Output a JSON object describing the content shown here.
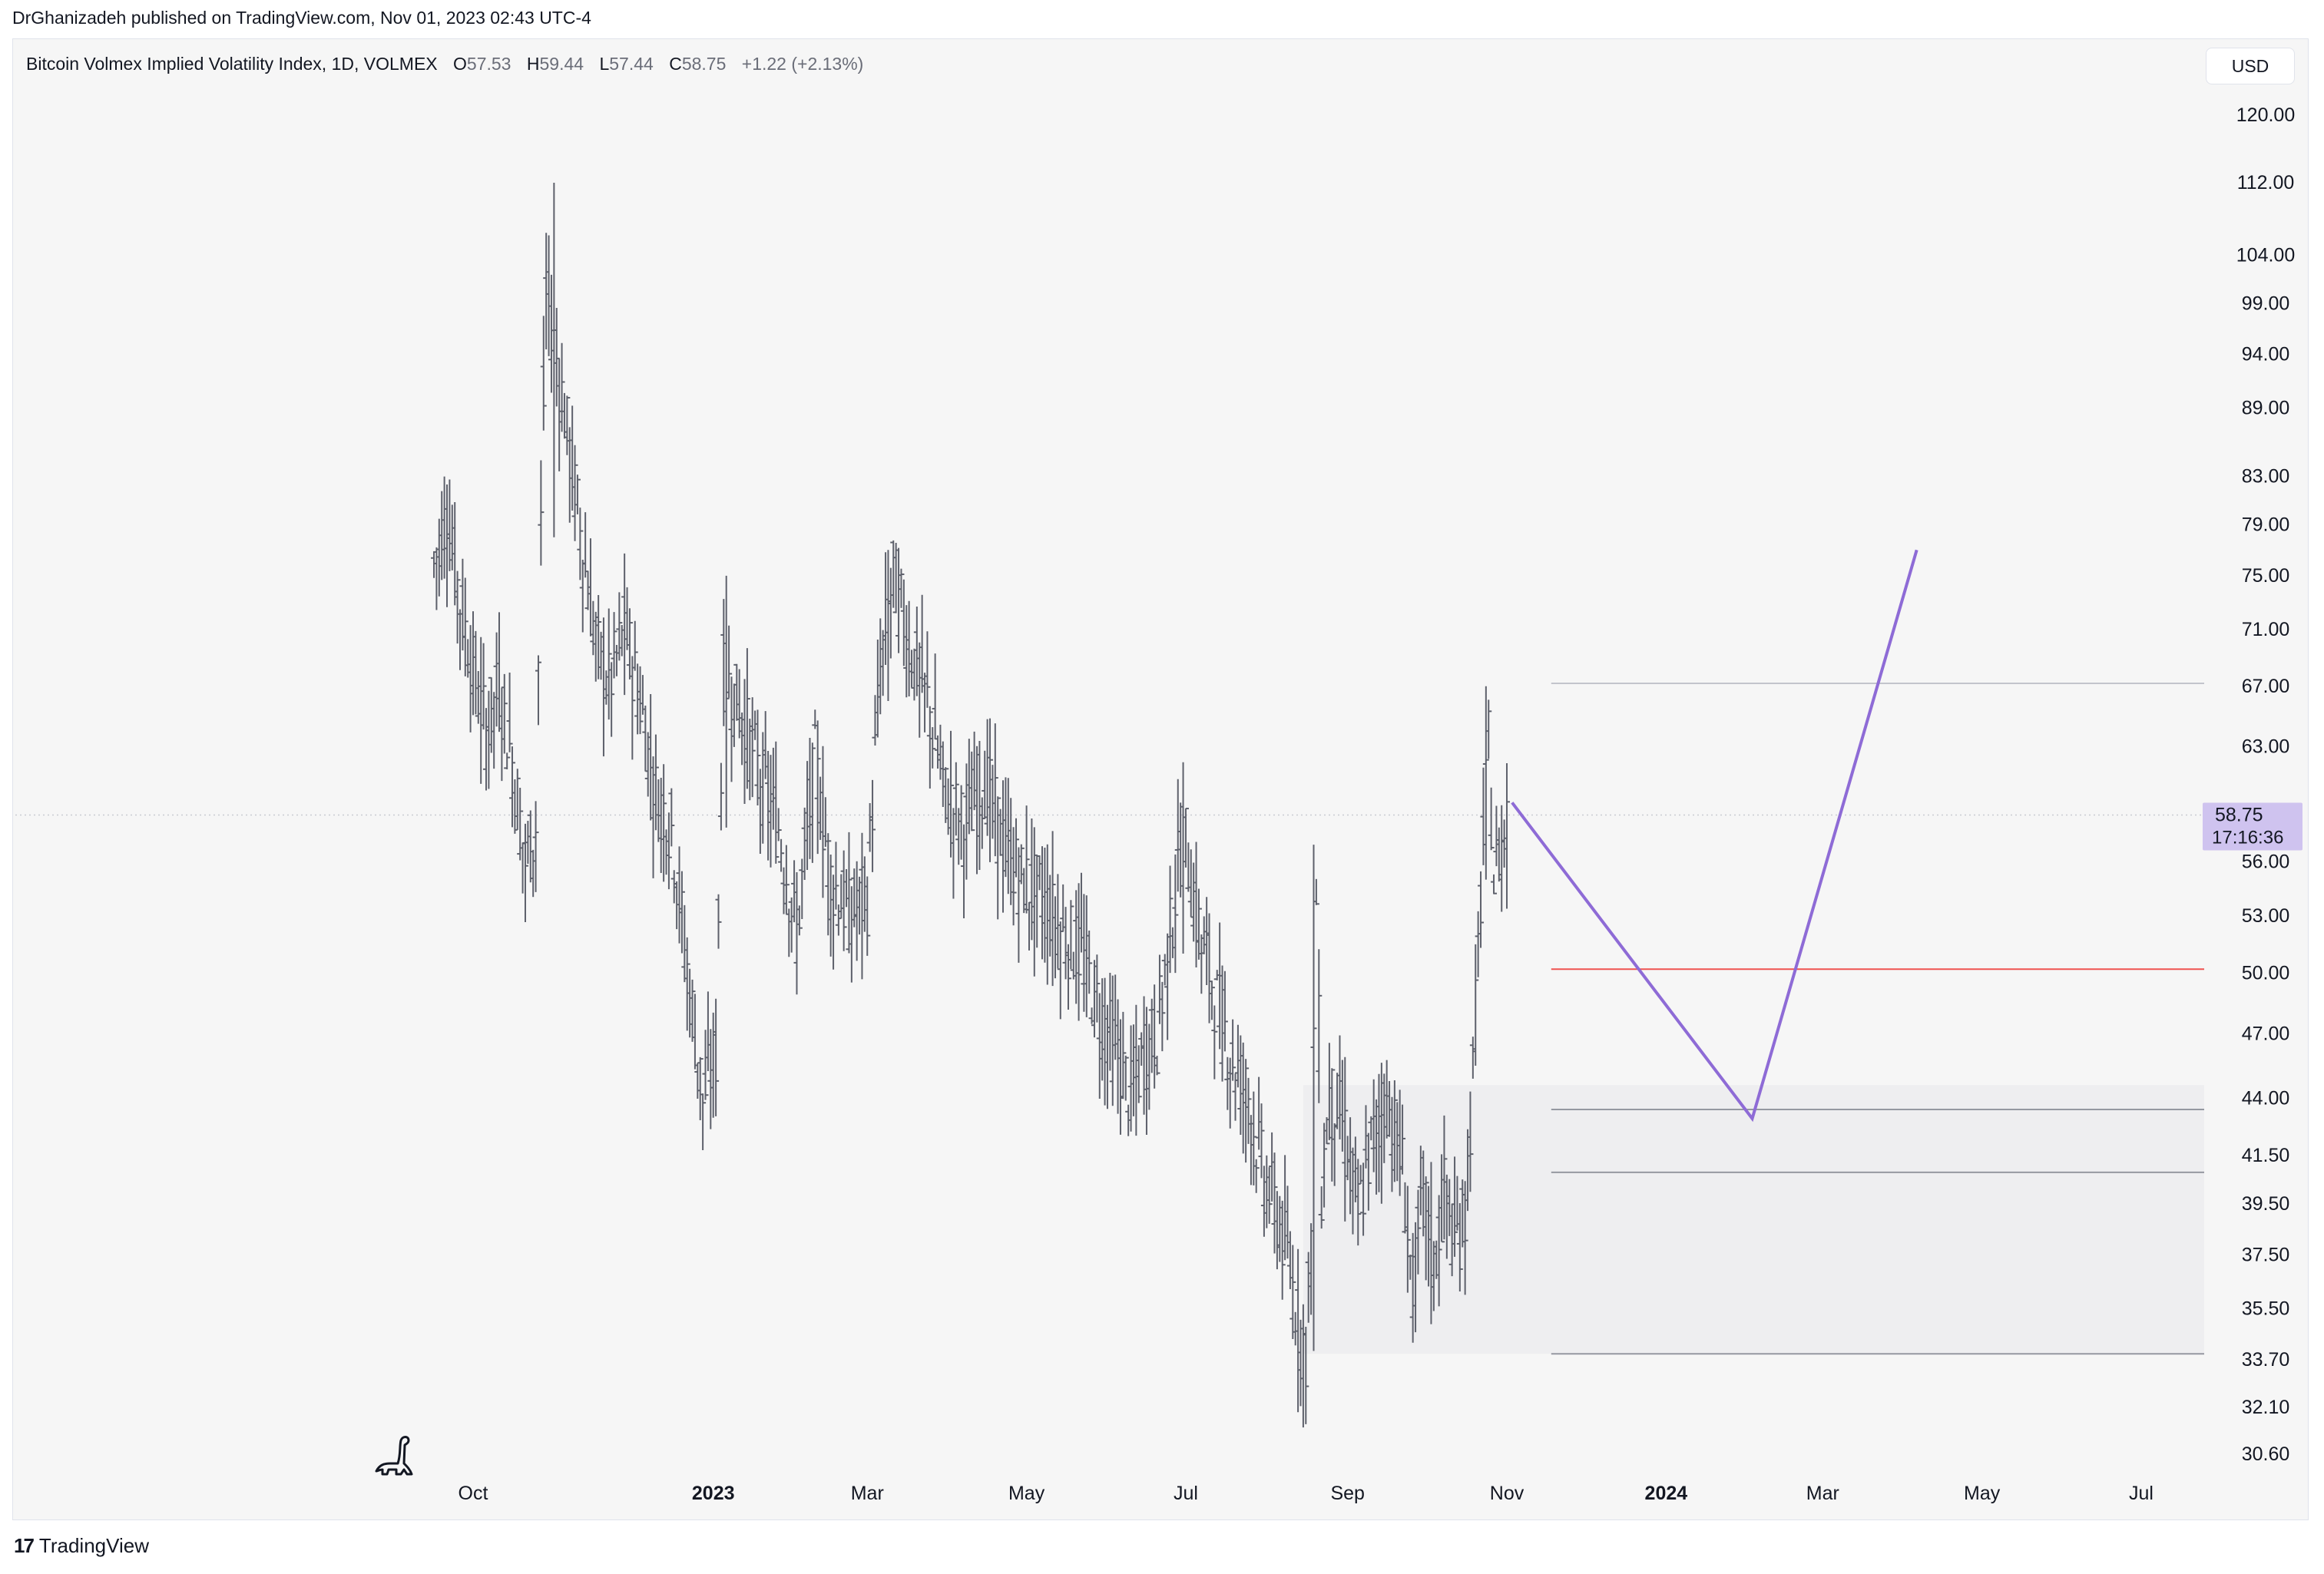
{
  "header": {
    "text": "DrGhanizadeh published on TradingView.com, Nov 01, 2023 02:43 UTC-4"
  },
  "legend": {
    "symbol": "Bitcoin Volmex Implied Volatility Index, 1D, VOLMEX",
    "open_label": "O",
    "open": "57.53",
    "high_label": "H",
    "high": "59.44",
    "low_label": "L",
    "low": "57.44",
    "close_label": "C",
    "close": "58.75",
    "change": "+1.22 (+2.13%)"
  },
  "currency": "USD",
  "price_tag": {
    "price": "58.75",
    "countdown": "17:16:36"
  },
  "footer": {
    "brand": "TradingView",
    "mark": "17"
  },
  "colors": {
    "candle": "#5d606b",
    "projection": "#8e6bd6",
    "tag_bg": "#cfc3ef",
    "support_line": "#ef5350",
    "level_line": "#9598a1",
    "zone": "#eeeef0"
  },
  "chart_data": {
    "type": "line",
    "title": "Bitcoin Volmex Implied Volatility Index, 1D, VOLMEX",
    "y_scale": "log",
    "ylim": [
      29.5,
      126
    ],
    "y_ticks": [
      "120.00",
      "112.00",
      "104.00",
      "99.00",
      "94.00",
      "89.00",
      "83.00",
      "79.00",
      "75.00",
      "71.00",
      "67.00",
      "63.00",
      "56.00",
      "53.00",
      "50.00",
      "47.00",
      "44.00",
      "41.50",
      "39.50",
      "37.50",
      "35.50",
      "33.70",
      "32.10",
      "30.60"
    ],
    "x_ticks": [
      "Oct",
      "2023",
      "Mar",
      "May",
      "Jul",
      "Sep",
      "Nov",
      "2024",
      "Mar",
      "May",
      "Jul"
    ],
    "x_tick_dates": [
      "2022-10-01",
      "2023-01-01",
      "2023-03-01",
      "2023-05-01",
      "2023-07-01",
      "2023-09-01",
      "2023-11-01",
      "2024-01-01",
      "2024-03-01",
      "2024-05-01",
      "2024-07-01"
    ],
    "x_range": [
      "2022-09-01",
      "2024-07-20"
    ],
    "series": [
      {
        "kind": "ohlc-bars",
        "anchors": [
          {
            "date": "2022-09-16",
            "value": 76
          },
          {
            "date": "2022-09-21",
            "value": 80
          },
          {
            "date": "2022-09-26",
            "value": 73
          },
          {
            "date": "2022-10-01",
            "value": 68
          },
          {
            "date": "2022-10-06",
            "value": 64
          },
          {
            "date": "2022-10-11",
            "value": 67
          },
          {
            "date": "2022-10-16",
            "value": 62
          },
          {
            "date": "2022-10-21",
            "value": 56
          },
          {
            "date": "2022-10-25",
            "value": 58
          },
          {
            "date": "2022-10-29",
            "value": 100
          },
          {
            "date": "2022-11-03",
            "value": 92
          },
          {
            "date": "2022-11-07",
            "value": 85
          },
          {
            "date": "2022-11-12",
            "value": 77
          },
          {
            "date": "2022-11-17",
            "value": 70
          },
          {
            "date": "2022-11-22",
            "value": 67
          },
          {
            "date": "2022-11-28",
            "value": 71
          },
          {
            "date": "2022-12-04",
            "value": 66
          },
          {
            "date": "2022-12-10",
            "value": 60
          },
          {
            "date": "2022-12-16",
            "value": 58
          },
          {
            "date": "2022-12-22",
            "value": 50
          },
          {
            "date": "2022-12-28",
            "value": 44
          },
          {
            "date": "2023-01-02",
            "value": 46
          },
          {
            "date": "2023-01-05",
            "value": 68
          },
          {
            "date": "2023-01-12",
            "value": 65
          },
          {
            "date": "2023-01-19",
            "value": 61
          },
          {
            "date": "2023-01-26",
            "value": 58
          },
          {
            "date": "2023-02-02",
            "value": 52
          },
          {
            "date": "2023-02-09",
            "value": 62
          },
          {
            "date": "2023-02-15",
            "value": 55
          },
          {
            "date": "2023-02-22",
            "value": 53
          },
          {
            "date": "2023-03-01",
            "value": 54
          },
          {
            "date": "2023-03-06",
            "value": 68
          },
          {
            "date": "2023-03-11",
            "value": 75
          },
          {
            "date": "2023-03-17",
            "value": 70
          },
          {
            "date": "2023-03-24",
            "value": 66
          },
          {
            "date": "2023-03-31",
            "value": 60
          },
          {
            "date": "2023-04-07",
            "value": 58
          },
          {
            "date": "2023-04-15",
            "value": 61
          },
          {
            "date": "2023-04-22",
            "value": 57
          },
          {
            "date": "2023-04-29",
            "value": 55
          },
          {
            "date": "2023-05-07",
            "value": 54
          },
          {
            "date": "2023-05-15",
            "value": 52
          },
          {
            "date": "2023-05-22",
            "value": 51
          },
          {
            "date": "2023-05-29",
            "value": 48
          },
          {
            "date": "2023-06-05",
            "value": 46
          },
          {
            "date": "2023-06-10",
            "value": 44
          },
          {
            "date": "2023-06-15",
            "value": 46
          },
          {
            "date": "2023-06-20",
            "value": 47
          },
          {
            "date": "2023-06-25",
            "value": 52
          },
          {
            "date": "2023-06-30",
            "value": 58
          },
          {
            "date": "2023-07-05",
            "value": 53
          },
          {
            "date": "2023-07-12",
            "value": 49
          },
          {
            "date": "2023-07-18",
            "value": 46
          },
          {
            "date": "2023-07-25",
            "value": 44
          },
          {
            "date": "2023-07-30",
            "value": 41
          },
          {
            "date": "2023-08-05",
            "value": 39
          },
          {
            "date": "2023-08-10",
            "value": 37
          },
          {
            "date": "2023-08-13",
            "value": 35
          },
          {
            "date": "2023-08-16",
            "value": 34
          },
          {
            "date": "2023-08-18",
            "value": 38
          },
          {
            "date": "2023-08-20",
            "value": 54
          },
          {
            "date": "2023-08-22",
            "value": 40
          },
          {
            "date": "2023-08-25",
            "value": 44
          },
          {
            "date": "2023-08-30",
            "value": 43
          },
          {
            "date": "2023-09-05",
            "value": 39
          },
          {
            "date": "2023-09-10",
            "value": 42
          },
          {
            "date": "2023-09-16",
            "value": 44
          },
          {
            "date": "2023-09-22",
            "value": 41
          },
          {
            "date": "2023-09-26",
            "value": 36
          },
          {
            "date": "2023-09-30",
            "value": 40
          },
          {
            "date": "2023-10-04",
            "value": 37
          },
          {
            "date": "2023-10-08",
            "value": 40
          },
          {
            "date": "2023-10-12",
            "value": 38
          },
          {
            "date": "2023-10-16",
            "value": 39
          },
          {
            "date": "2023-10-19",
            "value": 45
          },
          {
            "date": "2023-10-23",
            "value": 57
          },
          {
            "date": "2023-10-25",
            "value": 63
          },
          {
            "date": "2023-10-27",
            "value": 55
          },
          {
            "date": "2023-10-30",
            "value": 57
          },
          {
            "date": "2023-11-01",
            "value": 58.75
          }
        ],
        "highlights": [
          {
            "date": "2022-11-01",
            "high": 112,
            "low": 78
          },
          {
            "date": "2023-01-06",
            "high": 75,
            "low": 58
          },
          {
            "date": "2023-03-09",
            "high": 77,
            "low": 66
          },
          {
            "date": "2023-06-30",
            "high": 62,
            "low": 51
          },
          {
            "date": "2023-08-19",
            "high": 57,
            "low": 34
          },
          {
            "date": "2023-10-24",
            "high": 67,
            "low": 55
          }
        ]
      },
      {
        "kind": "projection-path",
        "points": [
          {
            "date": "2023-11-03",
            "value": 59.5
          },
          {
            "date": "2024-02-03",
            "value": 43.1
          },
          {
            "date": "2024-04-06",
            "value": 77
          }
        ]
      }
    ],
    "horizontal_levels": [
      {
        "value": 67.2,
        "kind": "resistance",
        "from": "2023-11-18"
      },
      {
        "value": 50.2,
        "kind": "support",
        "from": "2023-11-18"
      },
      {
        "value": 43.5,
        "kind": "level",
        "from": "2023-11-18"
      },
      {
        "value": 40.8,
        "kind": "level",
        "from": "2023-11-18"
      },
      {
        "value": 33.9,
        "kind": "level",
        "from": "2023-11-18"
      }
    ],
    "zone": {
      "from": "2023-08-15",
      "top": 44.6,
      "bottom": 33.9
    },
    "last_price": 58.75
  }
}
